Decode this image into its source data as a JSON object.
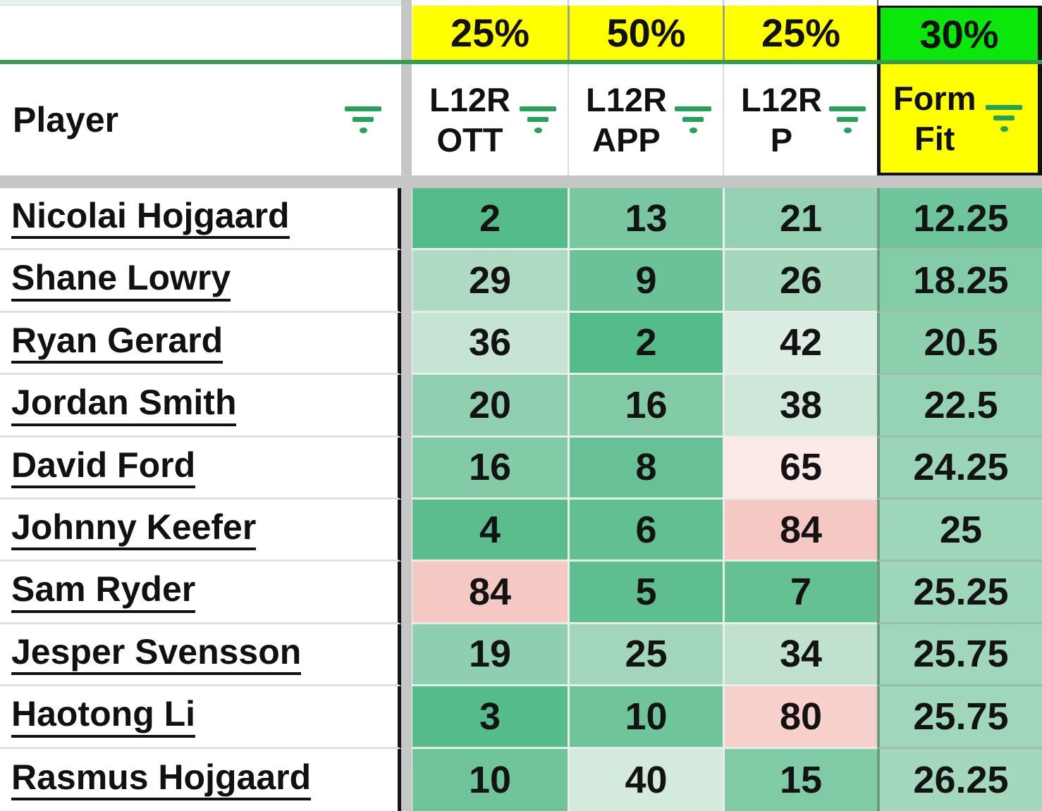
{
  "sheet": {
    "weights": [
      "25%",
      "50%",
      "25%",
      "30%"
    ],
    "player_header": "Player",
    "columns": [
      {
        "line1": "L12R",
        "line2": "OTT",
        "weight": "25%"
      },
      {
        "line1": "L12R",
        "line2": "APP",
        "weight": "50%"
      },
      {
        "line1": "L12R",
        "line2": "P",
        "weight": "25%"
      },
      {
        "line1": "Form",
        "line2": "Fit",
        "weight": "30%"
      }
    ],
    "rows": [
      {
        "player": "Nicolai Hojgaard",
        "values": [
          "2",
          "13",
          "21",
          "12.25"
        ],
        "colors": [
          "#54BB8A",
          "#79C7A1",
          "#93D1B2",
          "#6EC59B"
        ]
      },
      {
        "player": "Shane Lowry",
        "values": [
          "29",
          "9",
          "26",
          "18.25"
        ],
        "colors": [
          "#AEDAC3",
          "#6BC298",
          "#A4D7BC",
          "#83CCA8"
        ]
      },
      {
        "player": "Ryan Gerard",
        "values": [
          "36",
          "2",
          "42",
          "20.5"
        ],
        "colors": [
          "#C6E4D3",
          "#54BB8A",
          "#DBEDE2",
          "#8CD0AE"
        ]
      },
      {
        "player": "Jordan Smith",
        "values": [
          "20",
          "16",
          "38",
          "22.5"
        ],
        "colors": [
          "#90D0B0",
          "#83CBA7",
          "#CDE7D8",
          "#94D3B3"
        ]
      },
      {
        "player": "David Ford",
        "values": [
          "16",
          "8",
          "65",
          "24.25"
        ],
        "colors": [
          "#83CBA7",
          "#68C196",
          "#FBEAE8",
          "#9BD5B8"
        ]
      },
      {
        "player": "Johnny Keefer",
        "values": [
          "4",
          "6",
          "84",
          "25"
        ],
        "colors": [
          "#5BBD8E",
          "#61BF92",
          "#F6C8C4",
          "#9DD6B9"
        ]
      },
      {
        "player": "Sam Ryder",
        "values": [
          "84",
          "5",
          "7",
          "25.25"
        ],
        "colors": [
          "#F6C8C4",
          "#5EBE90",
          "#65C094",
          "#9ED6BA"
        ]
      },
      {
        "player": "Jesper Svensson",
        "values": [
          "19",
          "25",
          "34",
          "25.75"
        ],
        "colors": [
          "#8DCFAE",
          "#A1D6BA",
          "#BFE1CE",
          "#A0D7BB"
        ]
      },
      {
        "player": "Haotong Li",
        "values": [
          "3",
          "10",
          "80",
          "25.75"
        ],
        "colors": [
          "#57BC8C",
          "#6FC49A",
          "#F7CFCB",
          "#A0D7BB"
        ]
      },
      {
        "player": "Rasmus Hojgaard",
        "values": [
          "10",
          "40",
          "15",
          "26.25"
        ],
        "colors": [
          "#6FC49A",
          "#D4EADD",
          "#80CAA5",
          "#A3D8BD"
        ]
      }
    ]
  },
  "colors": {
    "weight_bg": "#FFFF00",
    "weight_highlight_bg": "#0BE70B",
    "formfit_header_bg": "#FFFF00",
    "filter_icon_green": "#27A05A",
    "divider_green": "#349E4D",
    "freeze_bar_gray": "#C6C6C6",
    "player_column_border": "#141414",
    "top_sliver_mint": "#E6F1E9"
  }
}
